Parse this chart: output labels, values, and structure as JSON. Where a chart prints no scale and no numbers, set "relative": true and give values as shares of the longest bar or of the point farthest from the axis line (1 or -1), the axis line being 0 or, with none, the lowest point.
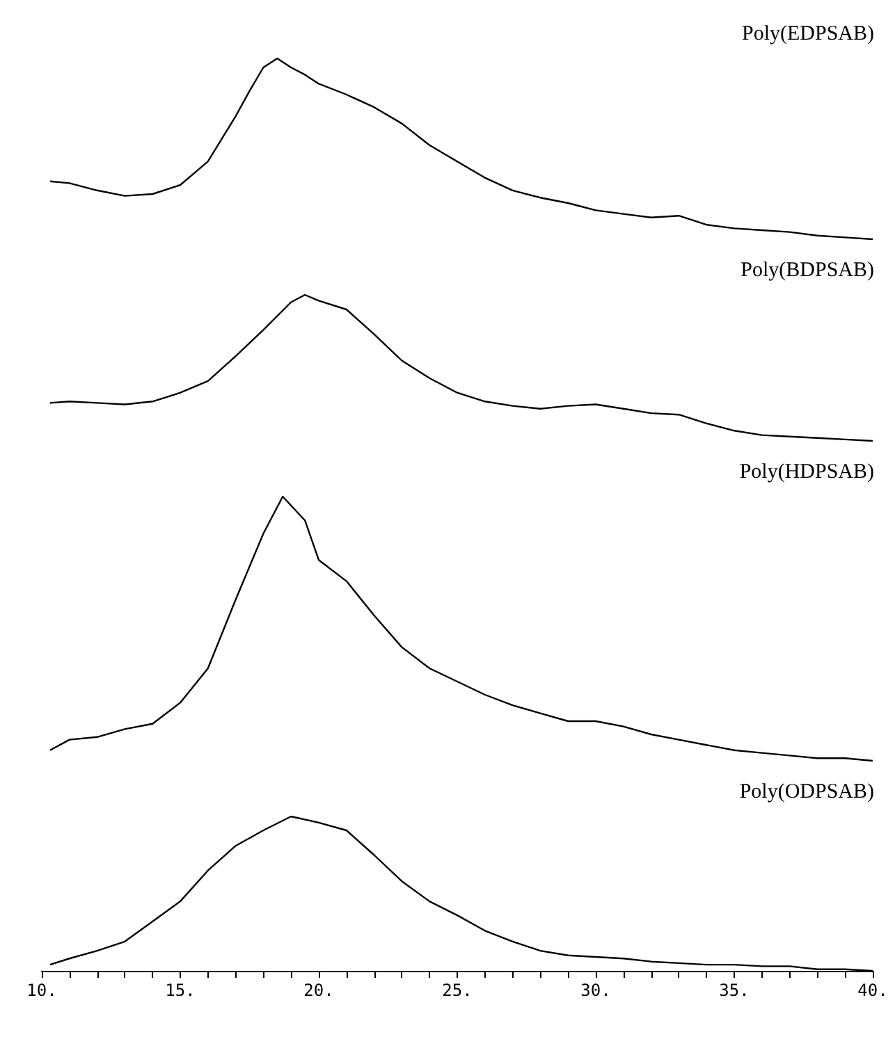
{
  "chart_data": [
    {
      "type": "line",
      "title": "Poly(EDPSAB)",
      "relative": true,
      "color": "#000000",
      "xlim": [
        10,
        40
      ],
      "tick_labels": false,
      "x": [
        10.3,
        11,
        12,
        13,
        14,
        15,
        16,
        17,
        17.5,
        18,
        18.5,
        19,
        19.5,
        20,
        21,
        22,
        23,
        24,
        25,
        26,
        27,
        28,
        29,
        30,
        31,
        32,
        33,
        34,
        35,
        36,
        37,
        38,
        39,
        40
      ],
      "values": [
        0.32,
        0.31,
        0.27,
        0.24,
        0.25,
        0.3,
        0.43,
        0.68,
        0.82,
        0.95,
        1.0,
        0.95,
        0.91,
        0.86,
        0.8,
        0.73,
        0.64,
        0.52,
        0.43,
        0.34,
        0.27,
        0.23,
        0.2,
        0.16,
        0.14,
        0.12,
        0.13,
        0.08,
        0.06,
        0.05,
        0.04,
        0.02,
        0.01,
        0
      ]
    },
    {
      "type": "line",
      "title": "Poly(BDPSAB)",
      "relative": true,
      "color": "#000000",
      "xlim": [
        10,
        40
      ],
      "tick_labels": false,
      "x": [
        10.3,
        11,
        12,
        13,
        14,
        15,
        16,
        17,
        18,
        19,
        19.5,
        20,
        21,
        22,
        23,
        24,
        25,
        26,
        27,
        28,
        29,
        30,
        31,
        32,
        33,
        34,
        35,
        36,
        37,
        38,
        39,
        40
      ],
      "values": [
        0.26,
        0.27,
        0.26,
        0.25,
        0.27,
        0.33,
        0.41,
        0.58,
        0.76,
        0.95,
        1.0,
        0.96,
        0.9,
        0.73,
        0.55,
        0.43,
        0.33,
        0.27,
        0.24,
        0.22,
        0.24,
        0.25,
        0.22,
        0.19,
        0.18,
        0.12,
        0.07,
        0.04,
        0.03,
        0.02,
        0.01,
        0
      ]
    },
    {
      "type": "line",
      "title": "Poly(HDPSAB)",
      "relative": true,
      "color": "#000000",
      "xlim": [
        10,
        40
      ],
      "tick_labels": false,
      "x": [
        10.3,
        11,
        12,
        13,
        14,
        15,
        16,
        17,
        18,
        18.7,
        19.5,
        20,
        21,
        22,
        23,
        24,
        25,
        26,
        27,
        28,
        29,
        30,
        31,
        32,
        33,
        34,
        35,
        36,
        37,
        38,
        39,
        40
      ],
      "values": [
        0.04,
        0.08,
        0.09,
        0.12,
        0.14,
        0.22,
        0.35,
        0.61,
        0.86,
        1.0,
        0.91,
        0.76,
        0.68,
        0.55,
        0.43,
        0.35,
        0.3,
        0.25,
        0.21,
        0.18,
        0.15,
        0.15,
        0.13,
        0.1,
        0.08,
        0.06,
        0.04,
        0.03,
        0.02,
        0.01,
        0.01,
        0
      ]
    },
    {
      "type": "line",
      "title": "Poly(ODPSAB)",
      "relative": true,
      "color": "#000000",
      "xlim": [
        10,
        40
      ],
      "tick_labels": "x",
      "xticks": [
        {
          "value": 10,
          "label": "10."
        },
        {
          "value": 11,
          "label": null
        },
        {
          "value": 12,
          "label": null
        },
        {
          "value": 13,
          "label": null
        },
        {
          "value": 14,
          "label": null
        },
        {
          "value": 15,
          "label": "15."
        },
        {
          "value": 16,
          "label": null
        },
        {
          "value": 17,
          "label": null
        },
        {
          "value": 18,
          "label": null
        },
        {
          "value": 19,
          "label": null
        },
        {
          "value": 20,
          "label": "20."
        },
        {
          "value": 21,
          "label": null
        },
        {
          "value": 22,
          "label": null
        },
        {
          "value": 23,
          "label": null
        },
        {
          "value": 24,
          "label": null
        },
        {
          "value": 25,
          "label": "25."
        },
        {
          "value": 26,
          "label": null
        },
        {
          "value": 27,
          "label": null
        },
        {
          "value": 28,
          "label": null
        },
        {
          "value": 29,
          "label": null
        },
        {
          "value": 30,
          "label": "30."
        },
        {
          "value": 31,
          "label": null
        },
        {
          "value": 32,
          "label": null
        },
        {
          "value": 33,
          "label": null
        },
        {
          "value": 34,
          "label": null
        },
        {
          "value": 35,
          "label": "35."
        },
        {
          "value": 36,
          "label": null
        },
        {
          "value": 37,
          "label": null
        },
        {
          "value": 38,
          "label": null
        },
        {
          "value": 39,
          "label": null
        },
        {
          "value": 40,
          "label": "40."
        }
      ],
      "x": [
        10.3,
        11,
        12,
        13,
        14,
        15,
        16,
        17,
        18,
        19,
        20,
        21,
        22,
        23,
        24,
        25,
        26,
        27,
        28,
        29,
        30,
        31,
        32,
        33,
        34,
        35,
        36,
        37,
        38,
        39,
        40
      ],
      "values": [
        0.04,
        0.08,
        0.13,
        0.19,
        0.32,
        0.45,
        0.65,
        0.81,
        0.91,
        1.0,
        0.96,
        0.91,
        0.75,
        0.58,
        0.45,
        0.36,
        0.26,
        0.19,
        0.13,
        0.1,
        0.09,
        0.08,
        0.06,
        0.05,
        0.04,
        0.04,
        0.03,
        0.03,
        0.01,
        0.01,
        0
      ]
    }
  ]
}
